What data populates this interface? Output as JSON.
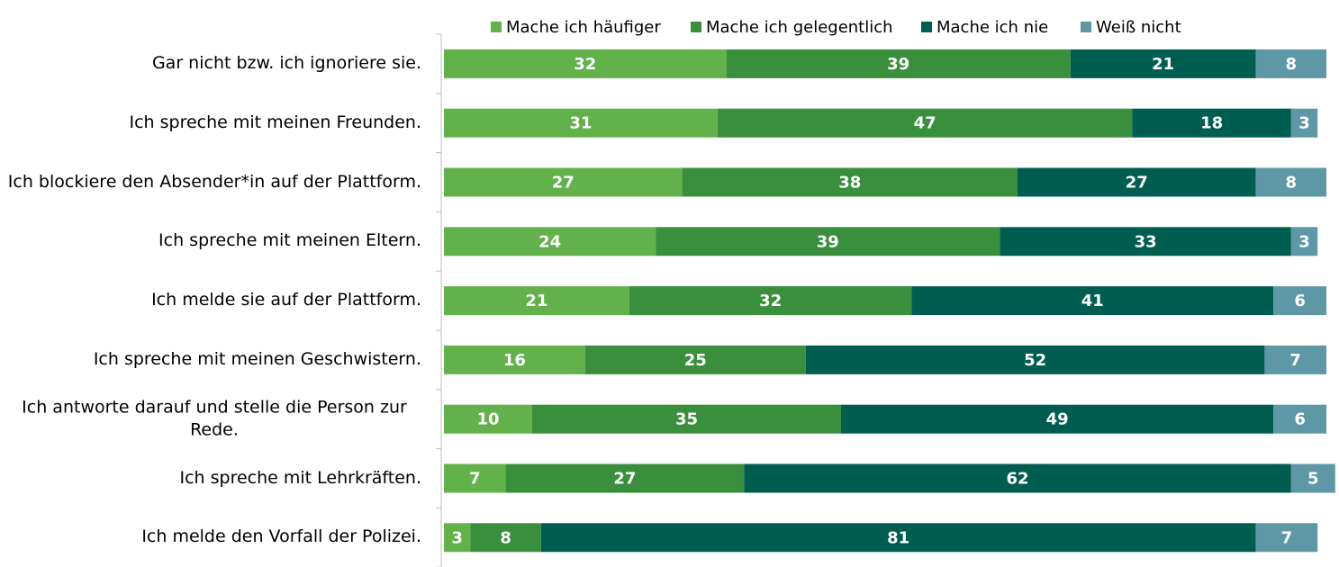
{
  "chart_data": {
    "type": "stacked-barh",
    "categories": [
      "Gar nicht bzw. ich ignoriere sie.",
      "Ich spreche mit meinen Freunden.",
      "Ich blockiere den Absender*in auf der Plattform.",
      "Ich spreche mit meinen Eltern.",
      "Ich melde sie auf der Plattform.",
      "Ich spreche mit meinen Geschwistern.",
      "Ich antworte darauf und stelle die Person zur Rede.",
      "Ich spreche mit Lehrkräften.",
      "Ich melde den Vorfall der Polizei."
    ],
    "series": [
      {
        "name": "Mache ich häufiger",
        "color": "#62b14a",
        "values": [
          32,
          31,
          27,
          24,
          21,
          16,
          10,
          7,
          3
        ]
      },
      {
        "name": "Mache ich gelegentlich",
        "color": "#3a8f3d",
        "values": [
          39,
          47,
          38,
          39,
          32,
          25,
          35,
          27,
          8
        ]
      },
      {
        "name": "Mache ich nie",
        "color": "#005e50",
        "values": [
          21,
          18,
          27,
          33,
          41,
          52,
          49,
          62,
          81
        ]
      },
      {
        "name": "Weiß nicht",
        "color": "#5e97a5",
        "values": [
          8,
          3,
          8,
          3,
          6,
          7,
          6,
          5,
          7
        ]
      }
    ],
    "xlim": [
      0,
      100
    ],
    "legend": "top"
  }
}
